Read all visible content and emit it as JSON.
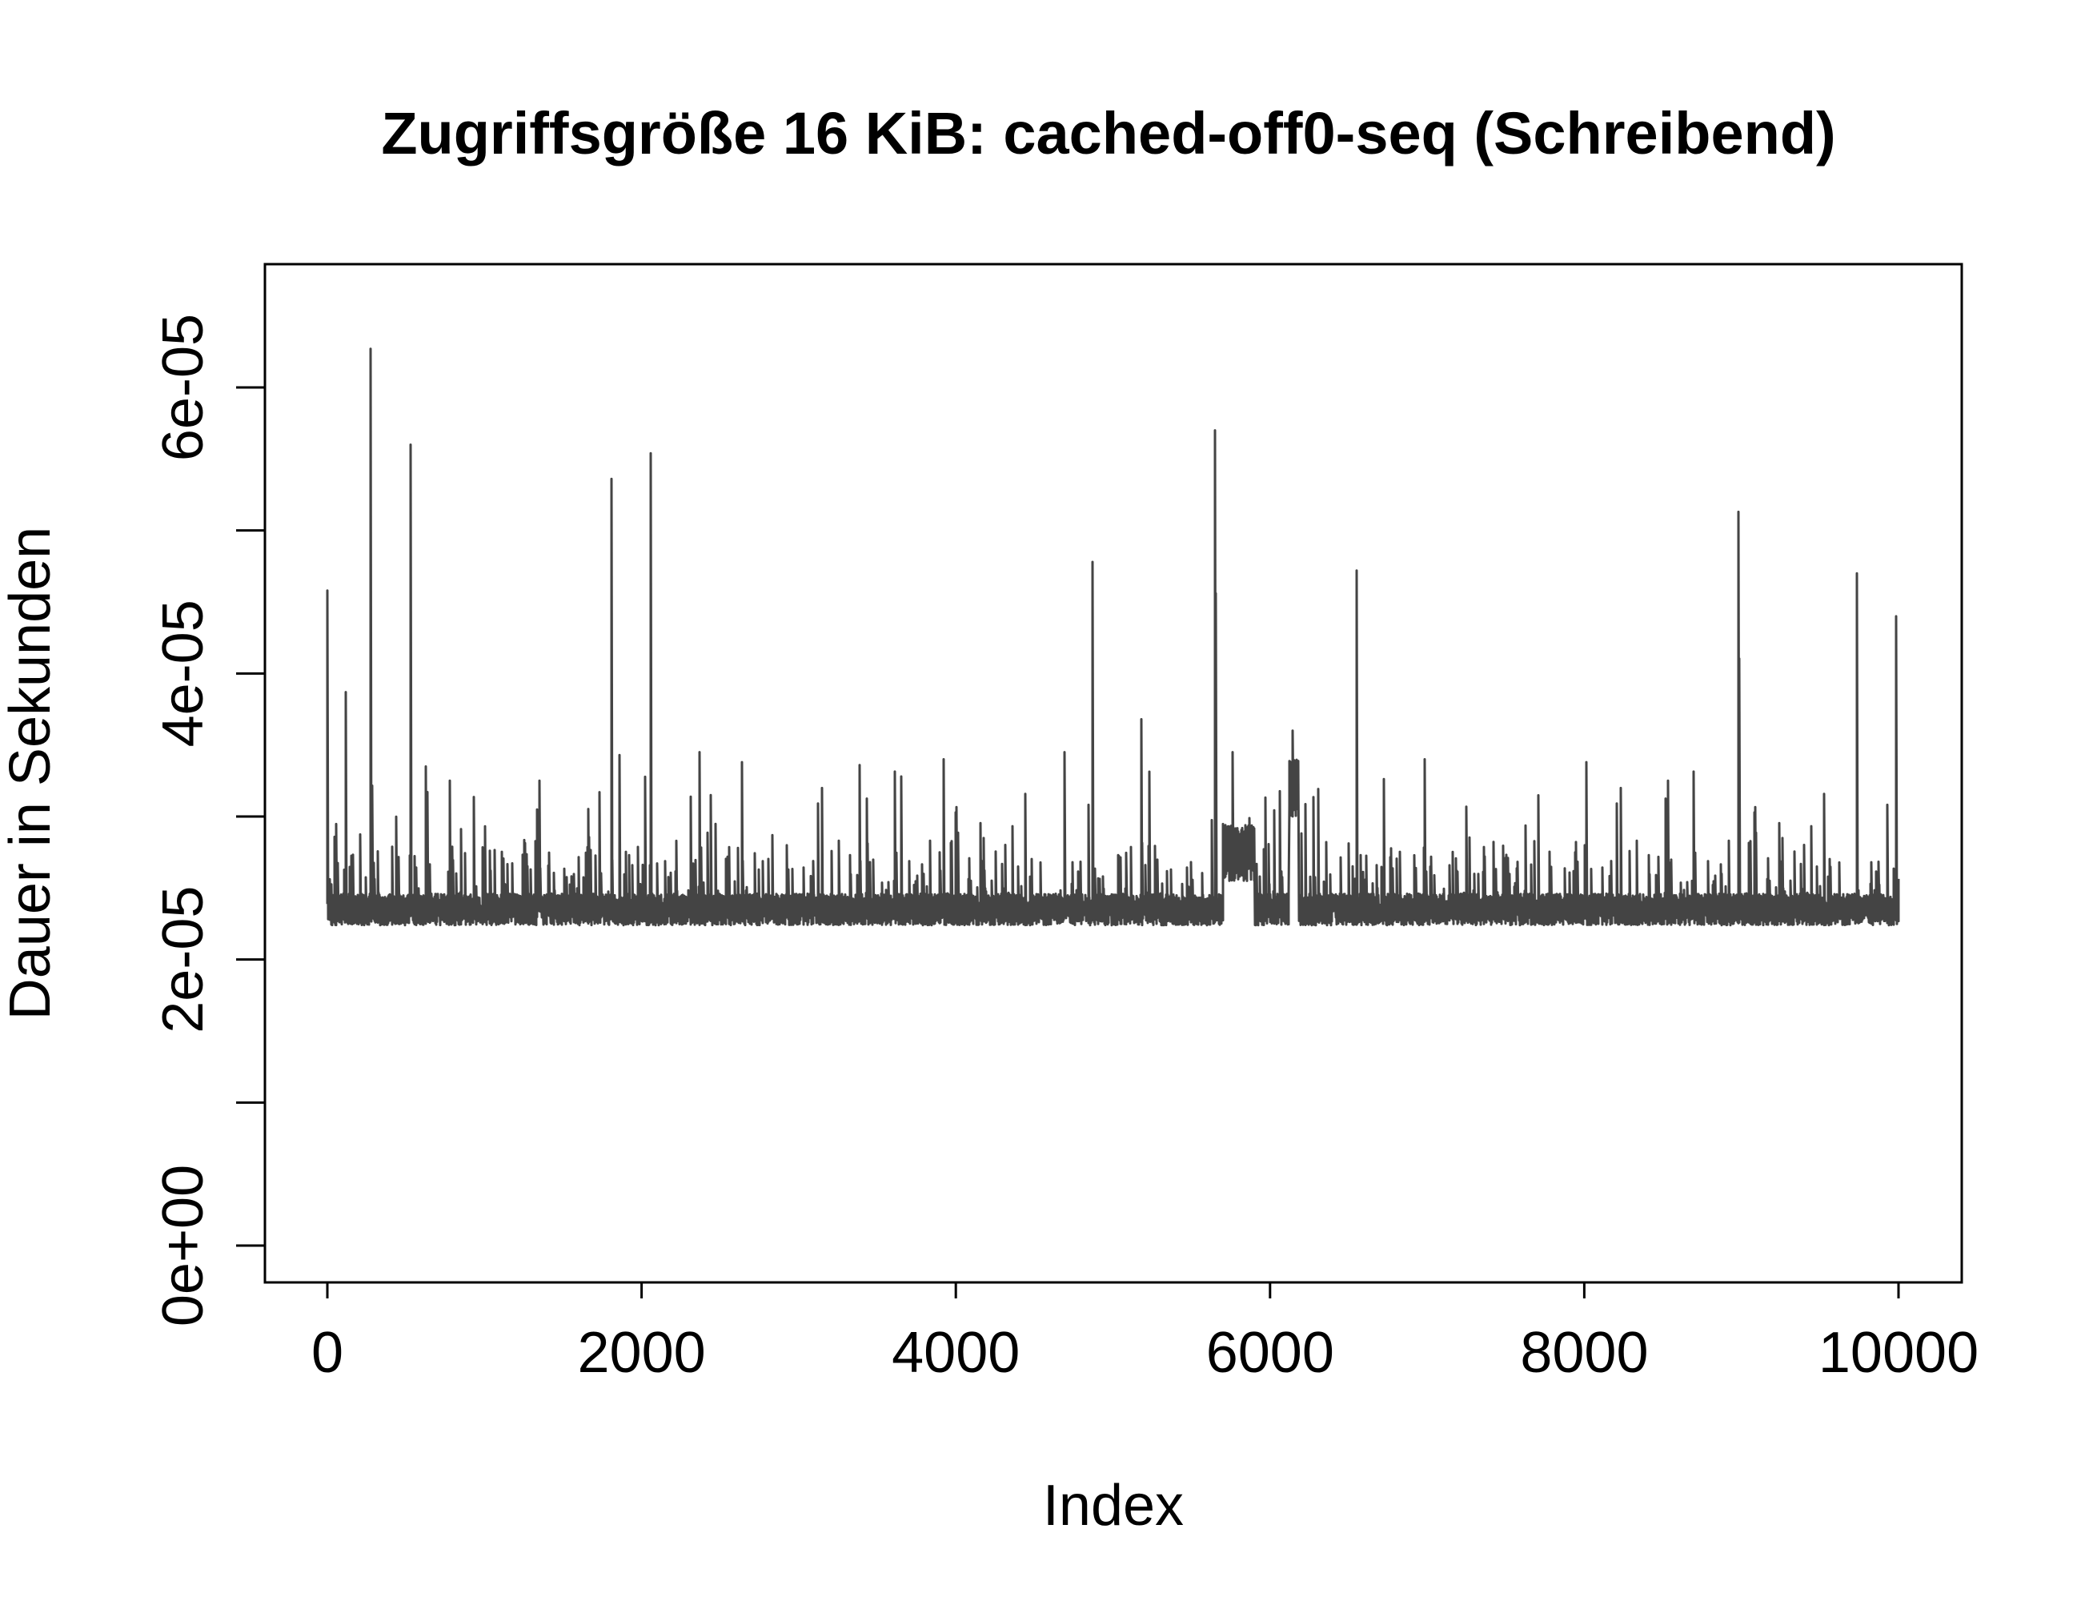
{
  "chart_data": {
    "type": "line",
    "title": "Zugriffsgröße 16 KiB: cached-off0-seq (Schreibend)",
    "xlabel": "Index",
    "ylabel": "Dauer in Sekunden",
    "xlim": [
      0,
      10000
    ],
    "ylim": [
      0,
      6.5e-05
    ],
    "x_ticks": [
      0,
      2000,
      4000,
      6000,
      8000,
      10000
    ],
    "x_tick_labels": [
      "0",
      "2000",
      "4000",
      "6000",
      "8000",
      "10000"
    ],
    "y_ticks": [
      0,
      1e-05,
      2e-05,
      3e-05,
      4e-05,
      5e-05,
      6e-05
    ],
    "y_tick_labels": [
      "0e+00",
      "2e-05",
      "4e-05",
      "6e-05"
    ],
    "y_labeled_ticks": [
      0,
      2e-05,
      4e-05,
      6e-05
    ],
    "grid": false,
    "line_color": "#444444",
    "n_points": 10000,
    "baseline": 2.35e-05,
    "baseline_noise": 2.2e-06,
    "peaks": [
      {
        "x": 0,
        "y": 4.58e-05
      },
      {
        "x": 120,
        "y": 3.87e-05
      },
      {
        "x": 275,
        "y": 6.27e-05
      },
      {
        "x": 530,
        "y": 5.6e-05
      },
      {
        "x": 630,
        "y": 3.35e-05
      },
      {
        "x": 780,
        "y": 3.25e-05
      },
      {
        "x": 1350,
        "y": 3.25e-05
      },
      {
        "x": 1810,
        "y": 5.36e-05
      },
      {
        "x": 1860,
        "y": 3.43e-05
      },
      {
        "x": 2060,
        "y": 5.54e-05
      },
      {
        "x": 2370,
        "y": 3.45e-05
      },
      {
        "x": 2640,
        "y": 3.38e-05
      },
      {
        "x": 3390,
        "y": 3.36e-05
      },
      {
        "x": 3650,
        "y": 3.28e-05
      },
      {
        "x": 3920,
        "y": 3.4e-05
      },
      {
        "x": 4690,
        "y": 3.45e-05
      },
      {
        "x": 4870,
        "y": 4.78e-05
      },
      {
        "x": 5180,
        "y": 3.68e-05
      },
      {
        "x": 5650,
        "y": 5.7e-05
      },
      {
        "x": 5760,
        "y": 3.45e-05
      },
      {
        "x": 6140,
        "y": 3.6e-05
      },
      {
        "x": 6550,
        "y": 4.72e-05
      },
      {
        "x": 6980,
        "y": 3.4e-05
      },
      {
        "x": 8010,
        "y": 3.38e-05
      },
      {
        "x": 8530,
        "y": 3.25e-05
      },
      {
        "x": 8980,
        "y": 5.13e-05
      },
      {
        "x": 9730,
        "y": 4.7e-05
      },
      {
        "x": 9980,
        "y": 4.4e-05
      }
    ],
    "elevated_segments": [
      {
        "from": 5700,
        "to": 5900,
        "y": 2.75e-05
      },
      {
        "from": 6120,
        "to": 6180,
        "y": 3.2e-05
      }
    ]
  }
}
